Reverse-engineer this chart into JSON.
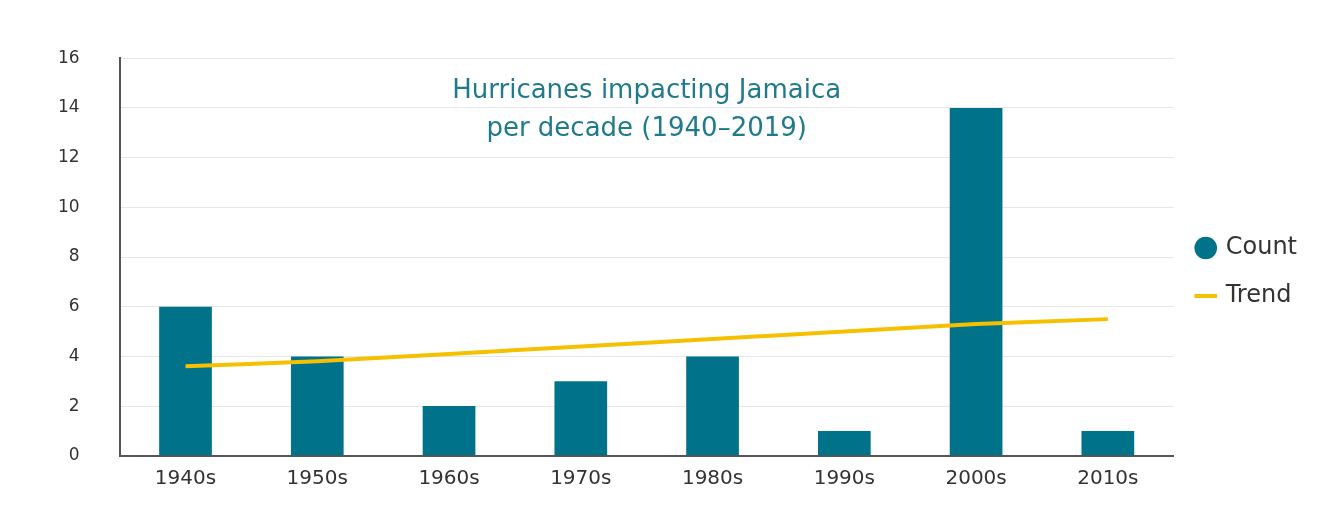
{
  "chart_data": {
    "type": "bar",
    "title": "Hurricanes impacting Jamaica per decade (1940–2019)",
    "categories": [
      "1940s",
      "1950s",
      "1960s",
      "1970s",
      "1980s",
      "1990s",
      "2000s",
      "2010s"
    ],
    "series": [
      {
        "name": "Count",
        "color": "#00728a",
        "values": [
          6,
          4,
          2,
          3,
          4,
          1,
          14,
          1
        ]
      },
      {
        "name": "Trend",
        "type": "line",
        "color": "#f5c000",
        "values": [
          3.6,
          3.8,
          4.1,
          4.4,
          4.7,
          5.0,
          5.3,
          5.5
        ]
      }
    ],
    "ylim": [
      0,
      16
    ],
    "yticks": [
      0,
      2,
      4,
      6,
      8,
      10,
      12,
      14,
      16
    ],
    "grid": "y",
    "legend": "right",
    "marker": "none",
    "line_style": "solid"
  }
}
